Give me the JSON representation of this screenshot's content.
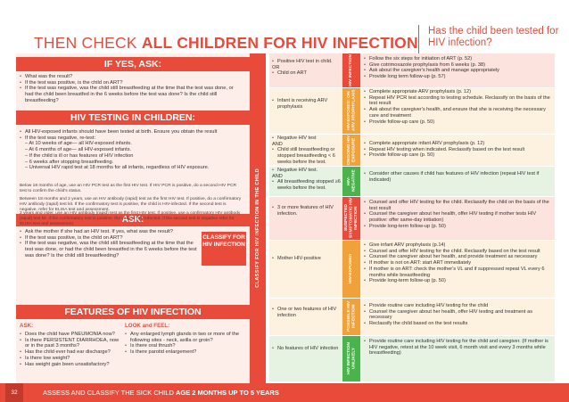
{
  "header": {
    "title_prefix": "THEN CHECK ",
    "title_bold": "ALL CHILDREN FOR HIV INFECTION",
    "side_question": "Has the child been tested for HIV infection?"
  },
  "left": {
    "yes_heading": "IF YES, ASK:",
    "yes_items": [
      "What was the result?",
      "If the test was positive, is the child on ART?",
      "If the test was negative, was the child still breastfeeding at the time that the test was done, or had the child been breastfed in the 6 weeks before the test was done? Is the child still breastfeeding?"
    ],
    "testing_heading": "HIV TESTING IN CHILDREN:",
    "testing_items": [
      "All HIV-exposed infants should have been tested at birth. Ensure you obtain the result",
      "If the test was negative, re-test:",
      "– At 10 weeks of age— all HIV-exposed infants.",
      "– At 6 months of age— all HIV-exposed infants.",
      "– If the child is ill or has features of HIV infection",
      "– 6 weeks after stopping breastfeeding.",
      "– Universal HIV rapid test at 18 months for all infants, regardless of HIV exposure."
    ],
    "para1": "Below 18 months of age, use an HIV PCR test as the first HIV test. If HIV PCR is positive, do a second HIV PCR test to confirm the child's status.",
    "para2": "Between 18 months and 2 years, use an HIV antibody (rapid) test as the first HIV test. If positive, do a confirmatory HIV antibody (rapid) test kit. If the confirmatory test is positive, the child is HIV-infected. If the second test is negative, refer for ELISA test and assessment.",
    "para3": "2 years and older, use an HIV antibody (rapid) test as the first HIV test. If positive, use a confirmatory HIV antibody (rapid) test kit. If the confirmatory test is positive, the child is HIV-infected. If the second test is negative refer for ELISA test and assessment.",
    "ask_heading": "ASK:",
    "ask_items": [
      "Ask the mother if she had an HIV test. If yes, what was the result?",
      "If the test was positive, is the child on ART?",
      "If the test was negative, was the child still breastfeeding at the time that the test was done, or had the child been breastfed in the 6 weeks before the test was done? Is the child still breastfeeding?"
    ],
    "classify_box": "CLASSIFY FOR HIV INFECTION",
    "features_heading": "FEATURES OF HIV INFECTION",
    "features_ask_label": "ASK:",
    "features_ask_items": [
      "Does the child have PNEUMONIA now?",
      "Is there PERSISTENT DIARRHOEA, now or in the past 3 months?",
      "Has the child ever had ear discharge?",
      "Is there low weight?",
      "Has weight gain been unsatisfactory?"
    ],
    "features_look_label": "LOOK and FEEL:",
    "features_look_items": [
      "Any enlarged lymph glands in two or more of the following sites - neck, axilla or groin?",
      "Is there oral thrush?",
      "Is there parotid enlargement?"
    ]
  },
  "strip_label": "CLASSIFY FOR HIV INFECTION IN THE CHILD",
  "rows": [
    {
      "sign": [
        "Positive HIV test in child.",
        "OR",
        "Child on ART"
      ],
      "class": "HIV INFECTION",
      "color": "#e84b3a",
      "bg": "#fce3dd",
      "tx": [
        "Follow the six steps for initiation of ART (p. 52)",
        "Give cotrimoxazole prophylaxis from 6 weeks (p. 38)",
        "Ask about the caregiver's health and manage appropriately",
        "Provide long term follow-up (p. 57)"
      ]
    },
    {
      "sign": [
        "Infant is receiving ARV prophylaxis"
      ],
      "class": "HIV-EXPOSED: ON ARV PROPHYLAXIS",
      "color": "#f0a13a",
      "bg": "#fdf1df",
      "tx": [
        "Complete appropriate ARV prophylaxis (p. 12)",
        "Repeat HIV PCR test according to testing schedule. Reclassify on the basis of the test result",
        "Ask about the caregiver's health, and ensure that she is receiving the necessary care and treatment",
        "Provide follow-up care (p. 50)"
      ]
    },
    {
      "sign": [
        "Negative HIV test",
        "AND",
        "Child still breastfeeding or stopped breastfeeding < 6 weeks before the test."
      ],
      "class": "ONGOING HIV EXPOSURE",
      "color": "#f0a13a",
      "bg": "#fdf1df",
      "tx": [
        "Complete appropriate infant ARV prophylaxis (p. 12)",
        "Repeat HIV testing when indicated. Reclassify based on the test result",
        "Provide follow-up care (p. 50)"
      ]
    },
    {
      "sign": [
        "Negative HIV test.",
        "AND",
        "All breastfeeding stopped ≥6 weeks before the test."
      ],
      "class": "HIV-NEGATIVE",
      "color": "#4bb34b",
      "bg": "#e6f3e3",
      "tx": [
        "Consider other causes if child has features of HIV infection (repeat HIV test if indicated)"
      ]
    },
    {
      "sign": [
        "3 or more features of HIV infection."
      ],
      "class": "SUSPECTED SYMPTOMATIC HIV INFECTION",
      "color": "#e84b3a",
      "bg": "#fce3dd",
      "tx": [
        "Counsel and offer HIV testing for the child. Reclassify the child on the basis of the test result",
        "Counsel the caregiver about her health, offer HIV testing if mother tests HIV positive: offer same-day initiation)",
        "Provide long-term follow-up (p. 50)"
      ]
    },
    {
      "sign": [
        "Mother HIV-positive"
      ],
      "class": "HIV-EXPOSED",
      "color": "#f0a13a",
      "bg": "#fdf1df",
      "tx": [
        "Give infant ARV prophylaxis (p.14)",
        "Counsel and offer HIV testing for the child. Reclassify based on the test result",
        "Counsel the caregiver about her health, and provide treatment as necessary",
        "If mother is not on ART: start ART immediately",
        "If mother is on ART: check the mother's VL and if suppressed repeat VL every 6 months while breastfeeding",
        "Provide long-term follow-up (p. 50)"
      ]
    },
    {
      "sign": [
        "One or two features of HIV infection"
      ],
      "class": "POSSIBLE HIV INFECTION",
      "color": "#f0a13a",
      "bg": "#fdf1df",
      "tx": [
        "Provide routine care including HIV testing for the child",
        "Counsel the caregiver about her health, offer HIV testing and treatment as necessary",
        "Reclassify the child based on the test results"
      ]
    },
    {
      "sign": [
        "No features of HIV infection"
      ],
      "class": "HIV INFECTION UNLIKELY",
      "color": "#4bb34b",
      "bg": "#e6f3e3",
      "tx": [
        "Provide routine care including HIV testing for the child and caregiver. (If mother is HIV negative, retest at the 10 week visit, 6 month visit and every 3 months while breastfeeding)"
      ]
    }
  ],
  "footer": {
    "page": "32",
    "text_prefix": "ASSESS AND CLASSIFY THE SICK CHILD ",
    "text_bold": "AGE 2 MONTHS UP TO 5 YEARS"
  }
}
